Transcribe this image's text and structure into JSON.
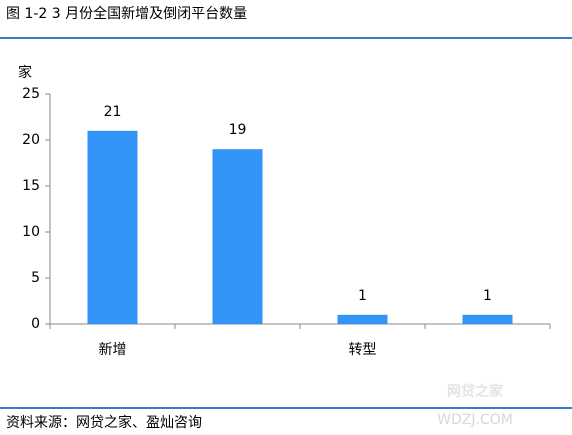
{
  "chart_data": {
    "type": "bar",
    "title": "图 1-2    3 月份全国新增及倒闭平台数量",
    "y_label": "家",
    "categories": [
      "新增",
      null,
      "转型",
      null
    ],
    "values": [
      21,
      19,
      1,
      1
    ],
    "color": "#3394f7",
    "ylim": [
      0,
      25
    ],
    "yticks": [
      0,
      5,
      10,
      15,
      20,
      25
    ],
    "source": "资料来源：网贷之家、盈灿咨询",
    "watermark": "网贷之家",
    "watermark_sub": "WDZJ.COM"
  }
}
